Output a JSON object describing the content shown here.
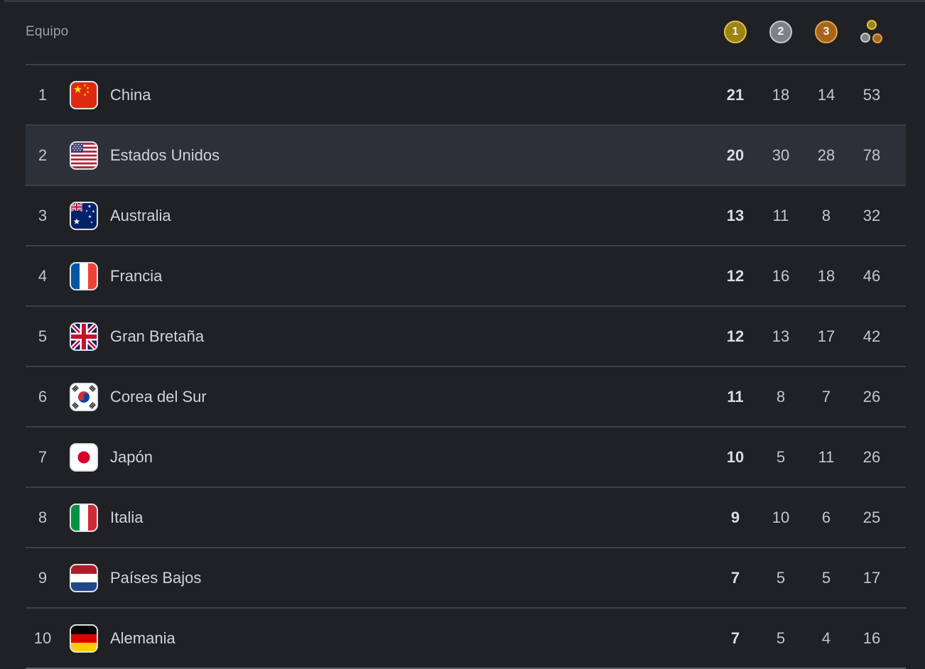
{
  "header": {
    "team_label": "Equipo",
    "gold_label": "1",
    "silver_label": "2",
    "bronze_label": "3"
  },
  "icons": {
    "gold_column": "gold-medal-circle-1",
    "silver_column": "silver-medal-circle-2",
    "bronze_column": "bronze-medal-circle-3",
    "total_column": "three-medal-dots"
  },
  "colors": {
    "background": "#202124",
    "top_strip": "#37383c",
    "row_highlight": "#2b3039",
    "divider": "#3c4043",
    "bottom_divider": "#595c60",
    "header_text": "#9aa0a6",
    "primary_text": "#d0d3d7",
    "secondary_text": "#c3c7cb",
    "gold_count_text": "#d9dce0",
    "gold_ring": "#e0c04a",
    "gold_fill": "#9c8314",
    "silver_ring": "#c6c9cd",
    "silver_fill": "#7e8287",
    "bronze_ring": "#e5a04d",
    "bronze_fill": "#a7651a"
  },
  "table": {
    "rows": [
      {
        "rank": "1",
        "country": "China",
        "flag": "china",
        "gold": "21",
        "silver": "18",
        "bronze": "14",
        "total": "53",
        "highlighted": false
      },
      {
        "rank": "2",
        "country": "Estados Unidos",
        "flag": "usa",
        "gold": "20",
        "silver": "30",
        "bronze": "28",
        "total": "78",
        "highlighted": true
      },
      {
        "rank": "3",
        "country": "Australia",
        "flag": "australia",
        "gold": "13",
        "silver": "11",
        "bronze": "8",
        "total": "32",
        "highlighted": false
      },
      {
        "rank": "4",
        "country": "Francia",
        "flag": "france",
        "gold": "12",
        "silver": "16",
        "bronze": "18",
        "total": "46",
        "highlighted": false
      },
      {
        "rank": "5",
        "country": "Gran Bretaña",
        "flag": "uk",
        "gold": "12",
        "silver": "13",
        "bronze": "17",
        "total": "42",
        "highlighted": false
      },
      {
        "rank": "6",
        "country": "Corea del Sur",
        "flag": "south-korea",
        "gold": "11",
        "silver": "8",
        "bronze": "7",
        "total": "26",
        "highlighted": false
      },
      {
        "rank": "7",
        "country": "Japón",
        "flag": "japan",
        "gold": "10",
        "silver": "5",
        "bronze": "11",
        "total": "26",
        "highlighted": false
      },
      {
        "rank": "8",
        "country": "Italia",
        "flag": "italy",
        "gold": "9",
        "silver": "10",
        "bronze": "6",
        "total": "25",
        "highlighted": false
      },
      {
        "rank": "9",
        "country": "Países Bajos",
        "flag": "netherlands",
        "gold": "7",
        "silver": "5",
        "bronze": "5",
        "total": "17",
        "highlighted": false
      },
      {
        "rank": "10",
        "country": "Alemania",
        "flag": "germany",
        "gold": "7",
        "silver": "5",
        "bronze": "4",
        "total": "16",
        "highlighted": false
      }
    ]
  }
}
